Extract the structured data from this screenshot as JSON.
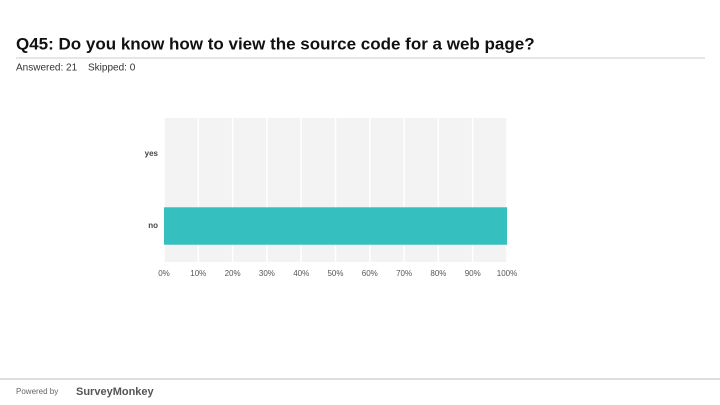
{
  "chart_data": {
    "type": "bar",
    "orientation": "horizontal",
    "title": "Q45: Do you know how to view the source code for a web page?",
    "answered": "Answered: 21",
    "skipped": "Skipped: 0",
    "categories": [
      "yes",
      "no"
    ],
    "values": [
      0,
      100
    ],
    "color": "#35bfbf",
    "xlim": [
      0,
      100
    ],
    "xticks": [
      {
        "value": 0,
        "label": "0%"
      },
      {
        "value": 10,
        "label": "10%"
      },
      {
        "value": 20,
        "label": "20%"
      },
      {
        "value": 30,
        "label": "30%"
      },
      {
        "value": 40,
        "label": "40%"
      },
      {
        "value": 50,
        "label": "50%"
      },
      {
        "value": 60,
        "label": "60%"
      },
      {
        "value": 70,
        "label": "70%"
      },
      {
        "value": 80,
        "label": "80%"
      },
      {
        "value": 90,
        "label": "90%"
      },
      {
        "value": 100,
        "label": "100%"
      }
    ],
    "grid": true,
    "footer": "Powered by",
    "brand": "SurveyMonkey"
  }
}
